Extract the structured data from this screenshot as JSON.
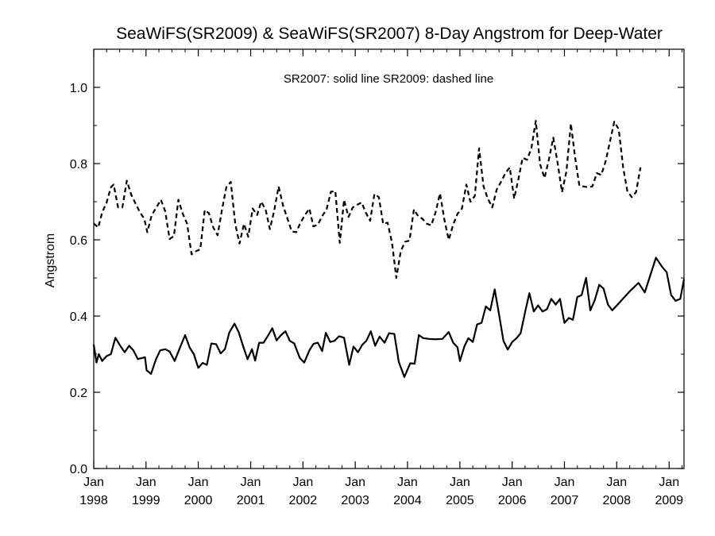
{
  "chart_data": {
    "type": "line",
    "title": "SeaWiFS(SR2009) & SeaWiFS(SR2007) 8-Day Angstrom for Deep-Water",
    "annotation": "SR2007: solid line   SR2009: dashed line",
    "xlabel": "",
    "ylabel": "Angstrom",
    "xlim": [
      "1998-01-01",
      "2009-04-15"
    ],
    "ylim": [
      0.0,
      1.1
    ],
    "x_ticks": [
      {
        "month": "Jan",
        "year": "1998",
        "date": "1998-01-01"
      },
      {
        "month": "Jan",
        "year": "1999",
        "date": "1999-01-01"
      },
      {
        "month": "Jan",
        "year": "2000",
        "date": "2000-01-01"
      },
      {
        "month": "Jan",
        "year": "2001",
        "date": "2001-01-01"
      },
      {
        "month": "Jan",
        "year": "2002",
        "date": "2002-01-01"
      },
      {
        "month": "Jan",
        "year": "2003",
        "date": "2003-01-01"
      },
      {
        "month": "Jan",
        "year": "2004",
        "date": "2004-01-01"
      },
      {
        "month": "Jan",
        "year": "2005",
        "date": "2005-01-01"
      },
      {
        "month": "Jan",
        "year": "2006",
        "date": "2006-01-01"
      },
      {
        "month": "Jan",
        "year": "2007",
        "date": "2007-01-01"
      },
      {
        "month": "Jan",
        "year": "2008",
        "date": "2008-01-01"
      },
      {
        "month": "Jan",
        "year": "2009",
        "date": "2009-01-01"
      }
    ],
    "y_ticks": [
      "0.0",
      "0.2",
      "0.4",
      "0.6",
      "0.8",
      "1.0"
    ],
    "grid": false,
    "series": [
      {
        "style": "solid",
        "color": "#000000",
        "points": [
          [
            "1998-01-01",
            0.325
          ],
          [
            "1998-01-20",
            0.278
          ],
          [
            "1998-02-05",
            0.3
          ],
          [
            "1998-03-01",
            0.282
          ],
          [
            "1998-04-01",
            0.295
          ],
          [
            "1998-05-01",
            0.3
          ],
          [
            "1998-06-01",
            0.343
          ],
          [
            "1998-07-05",
            0.322
          ],
          [
            "1998-08-05",
            0.305
          ],
          [
            "1998-09-05",
            0.322
          ],
          [
            "1998-10-05",
            0.31
          ],
          [
            "1998-11-05",
            0.287
          ],
          [
            "1998-12-05",
            0.29
          ],
          [
            "1998-12-25",
            0.292
          ],
          [
            "1999-01-05",
            0.258
          ],
          [
            "1999-02-05",
            0.248
          ],
          [
            "1999-03-10",
            0.285
          ],
          [
            "1999-04-10",
            0.31
          ],
          [
            "1999-05-15",
            0.313
          ],
          [
            "1999-06-15",
            0.307
          ],
          [
            "1999-07-20",
            0.282
          ],
          [
            "1999-08-25",
            0.316
          ],
          [
            "1999-10-01",
            0.35
          ],
          [
            "1999-11-01",
            0.318
          ],
          [
            "1999-12-01",
            0.3
          ],
          [
            "2000-01-01",
            0.264
          ],
          [
            "2000-02-01",
            0.277
          ],
          [
            "2000-03-01",
            0.272
          ],
          [
            "2000-04-01",
            0.328
          ],
          [
            "2000-05-05",
            0.326
          ],
          [
            "2000-06-05",
            0.302
          ],
          [
            "2000-07-05",
            0.313
          ],
          [
            "2000-08-05",
            0.357
          ],
          [
            "2000-09-10",
            0.38
          ],
          [
            "2000-10-10",
            0.357
          ],
          [
            "2000-11-10",
            0.32
          ],
          [
            "2000-12-10",
            0.287
          ],
          [
            "2001-01-10",
            0.313
          ],
          [
            "2001-02-01",
            0.283
          ],
          [
            "2001-03-01",
            0.33
          ],
          [
            "2001-04-01",
            0.33
          ],
          [
            "2001-05-01",
            0.348
          ],
          [
            "2001-06-01",
            0.368
          ],
          [
            "2001-07-01",
            0.336
          ],
          [
            "2001-08-01",
            0.35
          ],
          [
            "2001-09-01",
            0.36
          ],
          [
            "2001-10-01",
            0.335
          ],
          [
            "2001-11-01",
            0.328
          ],
          [
            "2001-12-10",
            0.29
          ],
          [
            "2002-01-10",
            0.278
          ],
          [
            "2002-02-15",
            0.31
          ],
          [
            "2002-03-15",
            0.327
          ],
          [
            "2002-04-15",
            0.33
          ],
          [
            "2002-05-15",
            0.308
          ],
          [
            "2002-06-10",
            0.356
          ],
          [
            "2002-07-10",
            0.332
          ],
          [
            "2002-08-10",
            0.335
          ],
          [
            "2002-09-10",
            0.347
          ],
          [
            "2002-10-15",
            0.343
          ],
          [
            "2002-11-20",
            0.272
          ],
          [
            "2002-12-20",
            0.32
          ],
          [
            "2003-01-20",
            0.305
          ],
          [
            "2003-02-20",
            0.325
          ],
          [
            "2003-03-20",
            0.335
          ],
          [
            "2003-04-20",
            0.36
          ],
          [
            "2003-05-20",
            0.322
          ],
          [
            "2003-06-20",
            0.346
          ],
          [
            "2003-07-25",
            0.33
          ],
          [
            "2003-08-25",
            0.355
          ],
          [
            "2003-10-01",
            0.353
          ],
          [
            "2003-11-01",
            0.28
          ],
          [
            "2003-12-10",
            0.24
          ],
          [
            "2004-01-20",
            0.276
          ],
          [
            "2004-02-20",
            0.275
          ],
          [
            "2004-03-20",
            0.35
          ],
          [
            "2004-04-20",
            0.342
          ],
          [
            "2004-06-01",
            0.34
          ],
          [
            "2004-07-15",
            0.339
          ],
          [
            "2004-09-01",
            0.34
          ],
          [
            "2004-10-15",
            0.358
          ],
          [
            "2004-11-15",
            0.33
          ],
          [
            "2004-12-15",
            0.318
          ],
          [
            "2005-01-01",
            0.282
          ],
          [
            "2005-02-01",
            0.32
          ],
          [
            "2005-03-01",
            0.342
          ],
          [
            "2005-04-01",
            0.332
          ],
          [
            "2005-05-01",
            0.378
          ],
          [
            "2005-06-01",
            0.382
          ],
          [
            "2005-07-01",
            0.425
          ],
          [
            "2005-08-01",
            0.415
          ],
          [
            "2005-09-01",
            0.47
          ],
          [
            "2005-10-01",
            0.405
          ],
          [
            "2005-11-01",
            0.335
          ],
          [
            "2005-12-01",
            0.312
          ],
          [
            "2006-01-01",
            0.332
          ],
          [
            "2006-02-01",
            0.342
          ],
          [
            "2006-03-01",
            0.355
          ],
          [
            "2006-04-01",
            0.41
          ],
          [
            "2006-05-01",
            0.46
          ],
          [
            "2006-06-01",
            0.412
          ],
          [
            "2006-07-01",
            0.428
          ],
          [
            "2006-08-01",
            0.412
          ],
          [
            "2006-09-01",
            0.418
          ],
          [
            "2006-10-01",
            0.445
          ],
          [
            "2006-11-01",
            0.43
          ],
          [
            "2006-12-01",
            0.445
          ],
          [
            "2007-01-01",
            0.382
          ],
          [
            "2007-02-01",
            0.395
          ],
          [
            "2007-03-01",
            0.39
          ],
          [
            "2007-04-01",
            0.45
          ],
          [
            "2007-05-01",
            0.455
          ],
          [
            "2007-06-01",
            0.5
          ],
          [
            "2007-07-01",
            0.415
          ],
          [
            "2007-08-01",
            0.442
          ],
          [
            "2007-09-01",
            0.482
          ],
          [
            "2007-10-01",
            0.472
          ],
          [
            "2007-11-01",
            0.43
          ],
          [
            "2007-12-01",
            0.415
          ],
          [
            "2008-02-01",
            0.44
          ],
          [
            "2008-04-01",
            0.465
          ],
          [
            "2008-06-01",
            0.487
          ],
          [
            "2008-07-15",
            0.462
          ],
          [
            "2008-10-01",
            0.553
          ],
          [
            "2008-11-15",
            0.528
          ],
          [
            "2008-12-15",
            0.515
          ],
          [
            "2009-01-15",
            0.455
          ],
          [
            "2009-02-15",
            0.44
          ],
          [
            "2009-03-20",
            0.445
          ],
          [
            "2009-04-15",
            0.497
          ]
        ]
      },
      {
        "style": "dashed",
        "color": "#000000",
        "points": [
          [
            "1998-01-01",
            0.643
          ],
          [
            "1998-02-01",
            0.632
          ],
          [
            "1998-03-01",
            0.672
          ],
          [
            "1998-04-01",
            0.698
          ],
          [
            "1998-05-01",
            0.738
          ],
          [
            "1998-05-20",
            0.745
          ],
          [
            "1998-06-20",
            0.685
          ],
          [
            "1998-07-20",
            0.685
          ],
          [
            "1998-08-20",
            0.755
          ],
          [
            "1998-09-20",
            0.718
          ],
          [
            "1998-10-20",
            0.695
          ],
          [
            "1998-11-20",
            0.672
          ],
          [
            "1998-12-20",
            0.655
          ],
          [
            "1999-01-10",
            0.62
          ],
          [
            "1999-02-10",
            0.665
          ],
          [
            "1999-03-15",
            0.685
          ],
          [
            "1999-04-15",
            0.705
          ],
          [
            "1999-05-15",
            0.675
          ],
          [
            "1999-06-15",
            0.602
          ],
          [
            "1999-07-15",
            0.61
          ],
          [
            "1999-08-15",
            0.705
          ],
          [
            "1999-09-15",
            0.668
          ],
          [
            "1999-10-15",
            0.642
          ],
          [
            "1999-11-15",
            0.562
          ],
          [
            "1999-12-15",
            0.57
          ],
          [
            "2000-01-15",
            0.575
          ],
          [
            "2000-02-15",
            0.678
          ],
          [
            "2000-03-15",
            0.67
          ],
          [
            "2000-04-15",
            0.632
          ],
          [
            "2000-05-15",
            0.612
          ],
          [
            "2000-06-15",
            0.68
          ],
          [
            "2000-07-15",
            0.738
          ],
          [
            "2000-08-15",
            0.752
          ],
          [
            "2000-09-15",
            0.642
          ],
          [
            "2000-10-15",
            0.59
          ],
          [
            "2000-11-15",
            0.642
          ],
          [
            "2000-12-15",
            0.608
          ],
          [
            "2001-01-15",
            0.682
          ],
          [
            "2001-02-15",
            0.665
          ],
          [
            "2001-03-15",
            0.7
          ],
          [
            "2001-04-15",
            0.68
          ],
          [
            "2001-05-15",
            0.628
          ],
          [
            "2001-06-15",
            0.678
          ],
          [
            "2001-07-15",
            0.74
          ],
          [
            "2001-08-15",
            0.69
          ],
          [
            "2001-09-15",
            0.655
          ],
          [
            "2001-10-15",
            0.622
          ],
          [
            "2001-11-15",
            0.62
          ],
          [
            "2001-12-15",
            0.645
          ],
          [
            "2002-01-15",
            0.665
          ],
          [
            "2002-02-15",
            0.682
          ],
          [
            "2002-03-15",
            0.635
          ],
          [
            "2002-04-15",
            0.64
          ],
          [
            "2002-05-15",
            0.662
          ],
          [
            "2002-06-15",
            0.68
          ],
          [
            "2002-07-15",
            0.726
          ],
          [
            "2002-08-15",
            0.728
          ],
          [
            "2002-09-15",
            0.592
          ],
          [
            "2002-10-15",
            0.705
          ],
          [
            "2002-11-15",
            0.66
          ],
          [
            "2002-12-15",
            0.685
          ],
          [
            "2003-01-15",
            0.692
          ],
          [
            "2003-02-15",
            0.698
          ],
          [
            "2003-03-15",
            0.672
          ],
          [
            "2003-04-15",
            0.65
          ],
          [
            "2003-05-15",
            0.72
          ],
          [
            "2003-06-15",
            0.712
          ],
          [
            "2003-07-15",
            0.642
          ],
          [
            "2003-08-15",
            0.645
          ],
          [
            "2003-09-15",
            0.592
          ],
          [
            "2003-10-15",
            0.5
          ],
          [
            "2003-11-15",
            0.57
          ],
          [
            "2003-12-15",
            0.595
          ],
          [
            "2004-01-15",
            0.598
          ],
          [
            "2004-02-15",
            0.68
          ],
          [
            "2004-03-15",
            0.662
          ],
          [
            "2004-04-15",
            0.655
          ],
          [
            "2004-05-15",
            0.642
          ],
          [
            "2004-06-15",
            0.638
          ],
          [
            "2004-07-15",
            0.672
          ],
          [
            "2004-08-15",
            0.722
          ],
          [
            "2004-09-15",
            0.652
          ],
          [
            "2004-10-15",
            0.6
          ],
          [
            "2004-11-15",
            0.64
          ],
          [
            "2004-12-15",
            0.668
          ],
          [
            "2005-01-15",
            0.682
          ],
          [
            "2005-02-15",
            0.745
          ],
          [
            "2005-03-15",
            0.7
          ],
          [
            "2005-04-15",
            0.715
          ],
          [
            "2005-05-15",
            0.84
          ],
          [
            "2005-06-15",
            0.74
          ],
          [
            "2005-07-15",
            0.708
          ],
          [
            "2005-08-15",
            0.685
          ],
          [
            "2005-09-15",
            0.732
          ],
          [
            "2005-10-15",
            0.752
          ],
          [
            "2005-11-15",
            0.775
          ],
          [
            "2005-12-15",
            0.79
          ],
          [
            "2006-01-15",
            0.708
          ],
          [
            "2006-02-15",
            0.762
          ],
          [
            "2006-03-15",
            0.815
          ],
          [
            "2006-04-15",
            0.81
          ],
          [
            "2006-05-15",
            0.84
          ],
          [
            "2006-06-15",
            0.912
          ],
          [
            "2006-07-15",
            0.798
          ],
          [
            "2006-08-15",
            0.762
          ],
          [
            "2006-09-15",
            0.812
          ],
          [
            "2006-10-15",
            0.868
          ],
          [
            "2006-11-15",
            0.8
          ],
          [
            "2006-12-15",
            0.725
          ],
          [
            "2007-01-15",
            0.78
          ],
          [
            "2007-02-15",
            0.905
          ],
          [
            "2007-03-15",
            0.82
          ],
          [
            "2007-04-15",
            0.742
          ],
          [
            "2007-05-15",
            0.74
          ],
          [
            "2007-06-15",
            0.738
          ],
          [
            "2007-07-15",
            0.74
          ],
          [
            "2007-08-15",
            0.775
          ],
          [
            "2007-09-15",
            0.77
          ],
          [
            "2007-10-15",
            0.805
          ],
          [
            "2007-11-15",
            0.858
          ],
          [
            "2007-12-15",
            0.91
          ],
          [
            "2008-01-15",
            0.89
          ],
          [
            "2008-02-15",
            0.79
          ],
          [
            "2008-03-15",
            0.728
          ],
          [
            "2008-04-15",
            0.712
          ],
          [
            "2008-05-15",
            0.725
          ],
          [
            "2008-06-15",
            0.79
          ]
        ]
      }
    ]
  }
}
